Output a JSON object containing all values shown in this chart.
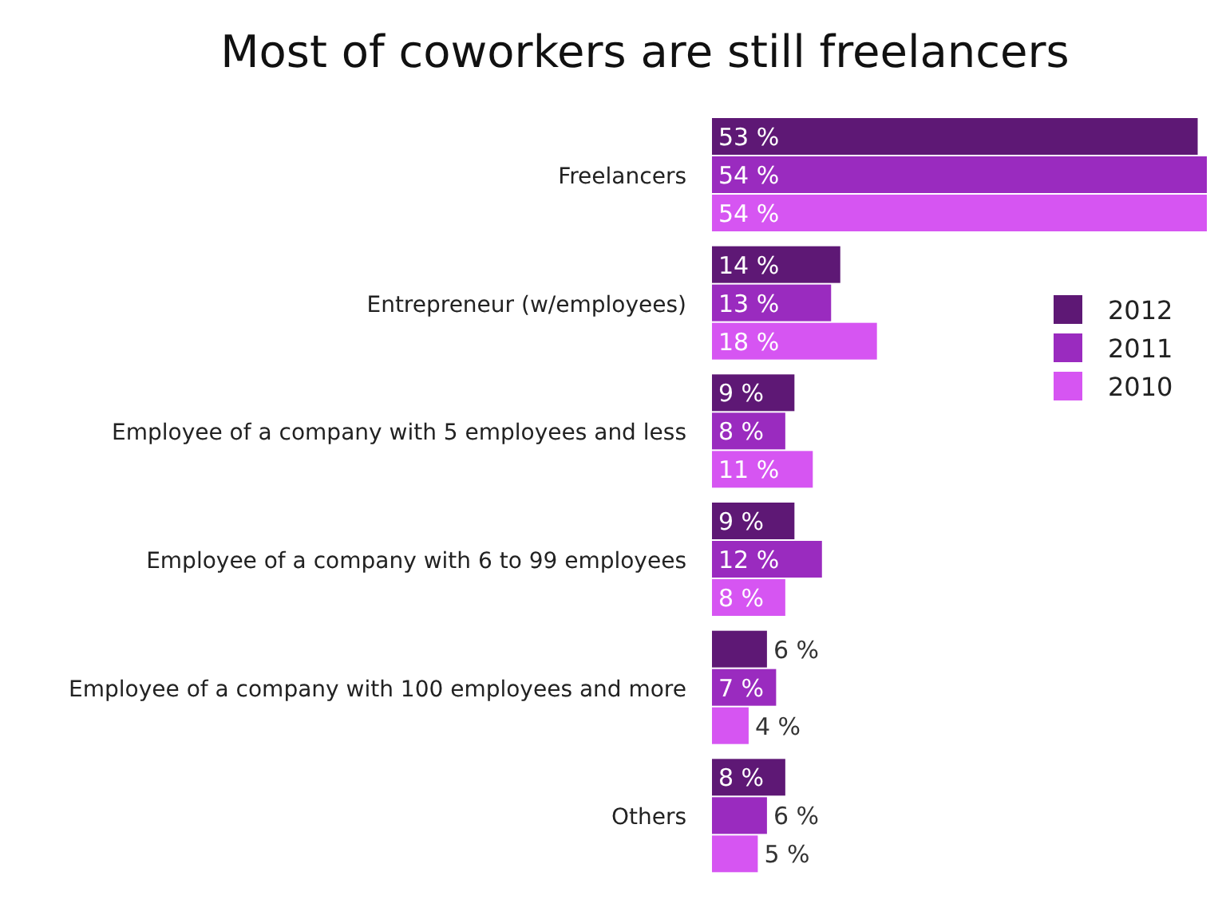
{
  "chart_data": {
    "type": "bar",
    "orientation": "horizontal",
    "title": "Most of coworkers are still freelancers",
    "categories": [
      "Freelancers",
      "Entrepreneur (w/employees)",
      "Employee of a company with 5 employees and less",
      "Employee of a company with 6 to 99 employees",
      "Employee of a company with 100 employees and more",
      "Others"
    ],
    "legend": "right",
    "series": [
      {
        "name": "2012",
        "color": "#5e1875",
        "values": [
          53,
          14,
          9,
          9,
          6,
          8
        ],
        "value_labels": [
          "53 %",
          "14 %",
          "9 %",
          "9 %",
          "6 %",
          "8 %"
        ]
      },
      {
        "name": "2011",
        "color": "#9a2bbf",
        "values": [
          54,
          13,
          8,
          12,
          7,
          6
        ],
        "value_labels": [
          "54 %",
          "13 %",
          "8 %",
          "12 %",
          "7 %",
          "6 %"
        ]
      },
      {
        "name": "2010",
        "color": "#d655f2",
        "values": [
          54,
          18,
          11,
          8,
          4,
          5
        ],
        "value_labels": [
          "54 %",
          "18 %",
          "11 %",
          "8 %",
          "4 %",
          "5 %"
        ]
      }
    ]
  }
}
